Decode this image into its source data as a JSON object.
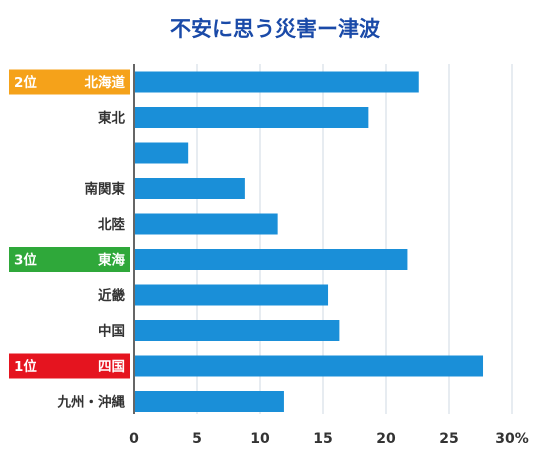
{
  "chart_data": {
    "type": "bar",
    "orientation": "horizontal",
    "title": "不安に思う災害ー津波",
    "categories": [
      "北海道",
      "東北",
      "",
      "南関東",
      "北陸",
      "東海",
      "近畿",
      "中国",
      "四国",
      "九州・沖縄"
    ],
    "values": [
      22.6,
      18.6,
      4.3,
      8.8,
      11.4,
      21.7,
      15.4,
      16.3,
      27.7,
      11.9
    ],
    "xlim": [
      0,
      30
    ],
    "xticks": [
      0,
      5,
      10,
      15,
      20,
      25,
      30
    ],
    "xtick_labels": [
      "0",
      "5",
      "10",
      "15",
      "20",
      "25",
      "30%"
    ],
    "grid": true,
    "bar_color": "#1a8fd8",
    "rank_badges": [
      {
        "category_index": 0,
        "rank": "2位",
        "color": "#f5a21a"
      },
      {
        "category_index": 5,
        "rank": "3位",
        "color": "#2fa83a"
      },
      {
        "category_index": 8,
        "rank": "1位",
        "color": "#e5141f"
      }
    ]
  }
}
